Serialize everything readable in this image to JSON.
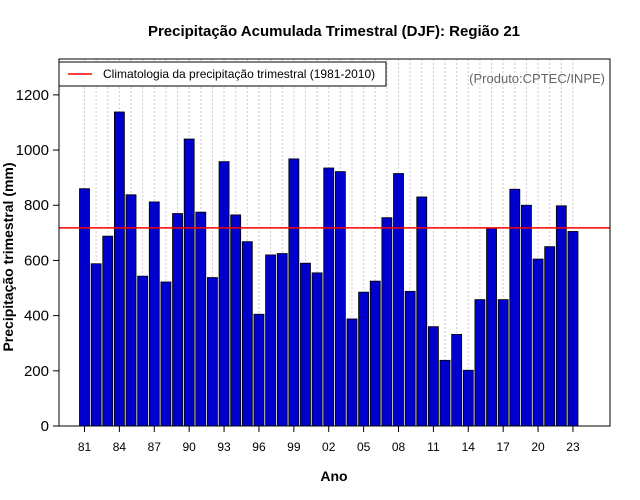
{
  "chart_data": {
    "type": "bar",
    "title": "Precipitação Acumulada Trimestral (DJF): Região 21",
    "xlabel": "Ano",
    "ylabel": "Precipitação trimestral (mm)",
    "credit": "(Produto:CPTEC/INPE)",
    "ylim": [
      0,
      1330
    ],
    "yticks": [
      0,
      200,
      400,
      600,
      800,
      1000,
      1200
    ],
    "ytick_labels": [
      "0",
      "200",
      "400",
      "600",
      "800",
      "1000",
      "1200"
    ],
    "categories": [
      "81",
      "82",
      "83",
      "84",
      "85",
      "86",
      "87",
      "88",
      "89",
      "90",
      "91",
      "92",
      "93",
      "94",
      "95",
      "96",
      "97",
      "98",
      "99",
      "00",
      "01",
      "02",
      "03",
      "04",
      "05",
      "06",
      "07",
      "08",
      "09",
      "10",
      "11",
      "12",
      "13",
      "14",
      "15",
      "16",
      "17",
      "18",
      "19",
      "20",
      "21",
      "22",
      "23"
    ],
    "xtick_labels": [
      "81",
      "84",
      "87",
      "90",
      "93",
      "96",
      "99",
      "02",
      "05",
      "08",
      "11",
      "14",
      "17",
      "20",
      "23"
    ],
    "values": [
      860,
      588,
      688,
      1138,
      838,
      543,
      812,
      522,
      770,
      1040,
      775,
      538,
      958,
      765,
      668,
      405,
      620,
      625,
      968,
      590,
      555,
      935,
      922,
      388,
      485,
      525,
      755,
      915,
      488,
      830,
      360,
      238,
      332,
      202,
      458,
      718,
      458,
      858,
      800,
      605,
      650,
      798,
      705
    ],
    "reference_line": {
      "value": 718,
      "label": "Climatologia da precipitação trimestral (1981-2010)",
      "color": "#ff0000"
    },
    "bar_color": "#0000cc",
    "grid": true,
    "legend": "top-left"
  }
}
